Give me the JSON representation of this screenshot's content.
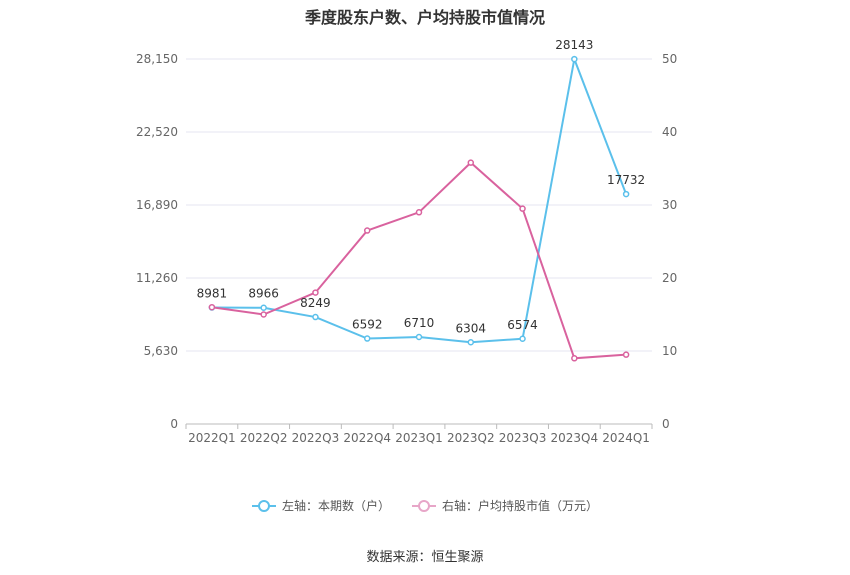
{
  "chart_data": {
    "type": "line",
    "title": "季度股东户数、户均持股市值情况",
    "categories": [
      "2022Q1",
      "2022Q2",
      "2022Q3",
      "2022Q4",
      "2023Q1",
      "2023Q2",
      "2023Q3",
      "2023Q4",
      "2024Q1"
    ],
    "y_left": {
      "ticks": [
        "0",
        "5,630",
        "11,260",
        "16,890",
        "22,520",
        "28,150"
      ],
      "ylim": [
        0,
        28150
      ]
    },
    "y_right": {
      "ticks": [
        "0",
        "10",
        "20",
        "30",
        "40",
        "50"
      ],
      "ylim": [
        0,
        50
      ]
    },
    "series": [
      {
        "name": "左轴：本期数（户）",
        "axis": "left",
        "color": "#5bc0eb",
        "values": [
          8981,
          8966,
          8249,
          6592,
          6710,
          6304,
          6574,
          28143,
          17732
        ],
        "labels": [
          "8981",
          "8966",
          "8249",
          "6592",
          "6710",
          "6304",
          "6574",
          "28143",
          "17732"
        ]
      },
      {
        "name": "右轴：户均持股市值（万元）",
        "axis": "right",
        "color": "#d9629e",
        "values": [
          16.0,
          15.0,
          18.0,
          26.5,
          29.0,
          35.8,
          29.5,
          9.0,
          9.5
        ]
      }
    ],
    "grid": true,
    "legend": "bottom-center"
  },
  "source": "数据来源：恒生聚源"
}
